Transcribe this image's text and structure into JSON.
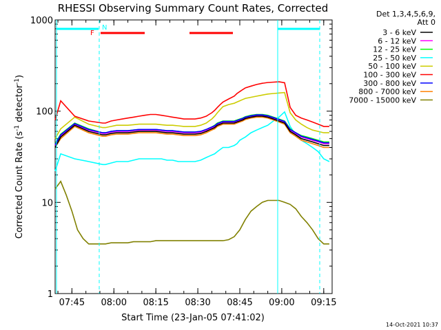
{
  "chart_data": {
    "type": "line",
    "title": "RHESSI Observing Summary Count Rates, Corrected",
    "xlabel": "Start Time (23-Jan-05 07:41:02)",
    "ylabel": "Corrected Count Rate (s⁻¹ detector⁻¹)",
    "ylabel_main": "Corrected Count Rate (s",
    "ylabel_sup1": "-1",
    "ylabel_mid": " detector",
    "ylabel_sup2": "-1",
    "ylabel_end": ")",
    "yscale": "log",
    "ylim": [
      1,
      1000
    ],
    "xlim_minutes": [
      -2,
      97
    ],
    "ytick_labels": [
      {
        "value": 1,
        "label": "1"
      },
      {
        "value": 10,
        "label": "10"
      },
      {
        "value": 100,
        "label": "100"
      },
      {
        "value": 1000,
        "label": "1000"
      }
    ],
    "xtick_labels": [
      {
        "t": 4,
        "label": "07:45"
      },
      {
        "t": 19,
        "label": "08:00"
      },
      {
        "t": 34,
        "label": "08:15"
      },
      {
        "t": 49,
        "label": "08:30"
      },
      {
        "t": 64,
        "label": "08:45"
      },
      {
        "t": 79,
        "label": "09:00"
      },
      {
        "t": 94,
        "label": "09:15"
      }
    ],
    "legend_header": [
      "Det 1,3,4,5,6,9,",
      "Att 0"
    ],
    "legend_placement": "right",
    "series": [
      {
        "name": "3 - 6 keV",
        "color": "#000000",
        "x": [
          -2,
          0,
          5,
          10,
          15,
          16,
          18,
          20,
          22,
          24,
          26,
          28,
          30,
          32,
          34,
          36,
          38,
          40,
          42,
          44,
          46,
          48,
          50,
          52,
          53,
          54,
          55,
          56,
          57,
          58,
          60,
          62,
          63,
          64,
          65,
          66,
          68,
          70,
          72,
          74,
          76,
          78,
          80,
          82,
          84,
          86,
          88,
          90,
          92,
          94,
          96
        ],
        "y": [
          40,
          52,
          70,
          60,
          55,
          55,
          57,
          58,
          58,
          58,
          59,
          60,
          60,
          60,
          60,
          59,
          58,
          58,
          57,
          56,
          56,
          56,
          57,
          60,
          62,
          64,
          66,
          70,
          72,
          74,
          74,
          74,
          76,
          78,
          80,
          83,
          86,
          88,
          88,
          86,
          82,
          78,
          74,
          60,
          55,
          50,
          48,
          46,
          44,
          42,
          42
        ]
      },
      {
        "name": "6 - 12 keV",
        "color": "#ff00ff",
        "x": [
          -2,
          0,
          5,
          10,
          15,
          16,
          18,
          20,
          22,
          24,
          26,
          28,
          30,
          32,
          34,
          36,
          38,
          40,
          42,
          44,
          46,
          48,
          50,
          52,
          53,
          54,
          55,
          56,
          57,
          58,
          60,
          62,
          63,
          64,
          65,
          66,
          68,
          70,
          72,
          74,
          76,
          78,
          80,
          82,
          84,
          86,
          88,
          90,
          92,
          94,
          96
        ],
        "y": [
          42,
          54,
          72,
          62,
          57,
          57,
          59,
          60,
          60,
          60,
          61,
          62,
          62,
          62,
          62,
          61,
          60,
          60,
          59,
          58,
          58,
          58,
          59,
          62,
          64,
          66,
          68,
          72,
          74,
          76,
          76,
          76,
          78,
          80,
          82,
          85,
          88,
          90,
          90,
          88,
          84,
          80,
          76,
          62,
          57,
          52,
          50,
          48,
          46,
          44,
          44
        ]
      },
      {
        "name": "12 - 25 keV",
        "color": "#00ff00",
        "x": [
          -2,
          0,
          5,
          10,
          15,
          16,
          18,
          20,
          22,
          24,
          26,
          28,
          30,
          32,
          34,
          36,
          38,
          40,
          42,
          44,
          46,
          48,
          50,
          52,
          53,
          54,
          55,
          56,
          57,
          58,
          60,
          62,
          63,
          64,
          65,
          66,
          68,
          70,
          72,
          74,
          76,
          78,
          80,
          82,
          84,
          86,
          88,
          90,
          92,
          94,
          96
        ],
        "y": [
          44,
          56,
          74,
          64,
          58,
          58,
          60,
          61,
          61,
          61,
          62,
          63,
          63,
          63,
          63,
          62,
          61,
          61,
          60,
          59,
          59,
          59,
          60,
          63,
          65,
          67,
          70,
          74,
          76,
          78,
          78,
          78,
          80,
          82,
          84,
          87,
          90,
          92,
          92,
          90,
          86,
          82,
          78,
          64,
          58,
          54,
          52,
          50,
          48,
          46,
          46
        ]
      },
      {
        "name": "25 - 50 keV",
        "color": "#00ffff",
        "x": [
          -2,
          0,
          5,
          10,
          15,
          16,
          18,
          20,
          22,
          24,
          26,
          28,
          30,
          32,
          34,
          36,
          38,
          40,
          42,
          44,
          46,
          48,
          50,
          52,
          53,
          54,
          55,
          56,
          57,
          58,
          60,
          62,
          63,
          64,
          65,
          66,
          68,
          70,
          72,
          74,
          76,
          78,
          80,
          82,
          84,
          86,
          88,
          90,
          92,
          94,
          96
        ],
        "y": [
          22,
          34,
          30,
          28,
          26,
          26,
          27,
          28,
          28,
          28,
          29,
          30,
          30,
          30,
          30,
          30,
          29,
          29,
          28,
          28,
          28,
          28,
          29,
          31,
          32,
          33,
          34,
          36,
          38,
          40,
          40,
          42,
          44,
          48,
          50,
          52,
          58,
          62,
          66,
          70,
          78,
          86,
          98,
          68,
          55,
          48,
          44,
          40,
          36,
          30,
          28
        ]
      },
      {
        "name": "50 - 100 keV",
        "color": "#cccc00",
        "x": [
          -2,
          0,
          5,
          10,
          15,
          16,
          18,
          20,
          22,
          24,
          26,
          28,
          30,
          32,
          34,
          36,
          38,
          40,
          42,
          44,
          46,
          48,
          50,
          52,
          53,
          54,
          55,
          56,
          57,
          58,
          60,
          62,
          63,
          64,
          65,
          66,
          68,
          70,
          72,
          74,
          76,
          78,
          80,
          82,
          84,
          86,
          88,
          90,
          92,
          94,
          96
        ],
        "y": [
          50,
          64,
          86,
          72,
          66,
          66,
          68,
          70,
          70,
          70,
          71,
          72,
          72,
          72,
          72,
          71,
          70,
          70,
          69,
          68,
          68,
          68,
          70,
          74,
          78,
          82,
          88,
          96,
          104,
          112,
          118,
          122,
          126,
          130,
          134,
          138,
          142,
          146,
          150,
          154,
          156,
          158,
          160,
          96,
          80,
          72,
          66,
          62,
          60,
          58,
          58
        ]
      },
      {
        "name": "100 - 300 keV",
        "color": "#ff0000",
        "x": [
          -2,
          0,
          5,
          10,
          15,
          16,
          18,
          20,
          22,
          24,
          26,
          28,
          30,
          32,
          34,
          36,
          38,
          40,
          42,
          44,
          46,
          48,
          50,
          52,
          53,
          54,
          55,
          56,
          57,
          58,
          60,
          62,
          63,
          64,
          65,
          66,
          68,
          70,
          72,
          74,
          76,
          78,
          80,
          82,
          84,
          86,
          88,
          90,
          92,
          94,
          96
        ],
        "y": [
          80,
          130,
          88,
          78,
          74,
          74,
          78,
          80,
          82,
          84,
          86,
          88,
          90,
          92,
          92,
          90,
          88,
          86,
          84,
          82,
          82,
          82,
          84,
          88,
          92,
          96,
          102,
          110,
          118,
          126,
          136,
          146,
          156,
          164,
          172,
          180,
          188,
          196,
          202,
          206,
          208,
          210,
          205,
          110,
          90,
          84,
          80,
          76,
          72,
          68,
          68
        ]
      },
      {
        "name": "300 - 800 keV",
        "color": "#0000ff",
        "x": [
          -2,
          0,
          5,
          10,
          15,
          16,
          18,
          20,
          22,
          24,
          26,
          28,
          30,
          32,
          34,
          36,
          38,
          40,
          42,
          44,
          46,
          48,
          50,
          52,
          53,
          54,
          55,
          56,
          57,
          58,
          60,
          62,
          63,
          64,
          65,
          66,
          68,
          70,
          72,
          74,
          76,
          78,
          80,
          82,
          84,
          86,
          88,
          90,
          92,
          94,
          96
        ],
        "y": [
          43,
          55,
          73,
          63,
          58,
          58,
          60,
          61,
          61,
          61,
          62,
          63,
          63,
          63,
          63,
          62,
          61,
          61,
          60,
          59,
          59,
          59,
          60,
          63,
          65,
          67,
          69,
          73,
          75,
          77,
          77,
          77,
          79,
          81,
          83,
          86,
          89,
          91,
          91,
          89,
          85,
          81,
          77,
          63,
          58,
          53,
          51,
          49,
          47,
          45,
          45
        ]
      },
      {
        "name": "800 - 7000 keV",
        "color": "#ff8000",
        "x": [
          -2,
          0,
          5,
          10,
          15,
          16,
          18,
          20,
          22,
          24,
          26,
          28,
          30,
          32,
          34,
          36,
          38,
          40,
          42,
          44,
          46,
          48,
          50,
          52,
          53,
          54,
          55,
          56,
          57,
          58,
          60,
          62,
          63,
          64,
          65,
          66,
          68,
          70,
          72,
          74,
          76,
          78,
          80,
          82,
          84,
          86,
          88,
          90,
          92,
          94,
          96
        ],
        "y": [
          40,
          50,
          68,
          58,
          53,
          53,
          55,
          56,
          56,
          56,
          57,
          58,
          58,
          58,
          58,
          57,
          56,
          56,
          55,
          54,
          54,
          54,
          55,
          58,
          60,
          62,
          64,
          68,
          70,
          72,
          72,
          72,
          74,
          76,
          78,
          81,
          84,
          86,
          86,
          84,
          80,
          76,
          72,
          58,
          53,
          48,
          46,
          44,
          42,
          40,
          40
        ]
      },
      {
        "name": "7000 - 15000 keV",
        "color": "#808000",
        "x": [
          -2,
          0,
          2,
          4,
          6,
          8,
          10,
          12,
          14,
          16,
          18,
          20,
          22,
          24,
          26,
          28,
          30,
          32,
          34,
          36,
          38,
          40,
          42,
          44,
          46,
          48,
          50,
          52,
          54,
          56,
          58,
          60,
          62,
          64,
          66,
          68,
          70,
          72,
          74,
          76,
          78,
          80,
          82,
          84,
          86,
          88,
          90,
          92,
          94,
          96
        ],
        "y": [
          14,
          17,
          12,
          8,
          5,
          4,
          3.5,
          3.5,
          3.5,
          3.5,
          3.6,
          3.6,
          3.6,
          3.6,
          3.7,
          3.7,
          3.7,
          3.7,
          3.8,
          3.8,
          3.8,
          3.8,
          3.8,
          3.8,
          3.8,
          3.8,
          3.8,
          3.8,
          3.8,
          3.8,
          3.8,
          3.9,
          4.2,
          5,
          6.5,
          8,
          9,
          10,
          10.5,
          10.5,
          10.5,
          10,
          9.5,
          8.5,
          7,
          6,
          5,
          4,
          3.5,
          3.5
        ]
      }
    ]
  },
  "footer": {
    "date_stamp": "14-Oct-2021 10:37"
  },
  "annotations": {
    "flare_label": "F",
    "night_label": "N"
  }
}
